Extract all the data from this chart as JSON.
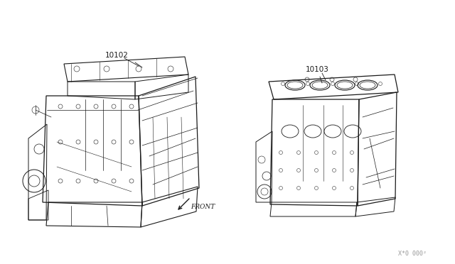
{
  "background_color": "#ffffff",
  "fig_width": 6.4,
  "fig_height": 3.72,
  "dpi": 100,
  "label_10102": "10102",
  "label_10103": "10103",
  "label_front": "FRONT",
  "label_code": "X*0 000²",
  "line_color": "#1a1a1a",
  "text_color": "#1a1a1a",
  "code_color": "#999999",
  "font_size_labels": 7.5,
  "font_size_front": 6.5,
  "font_size_code": 6
}
